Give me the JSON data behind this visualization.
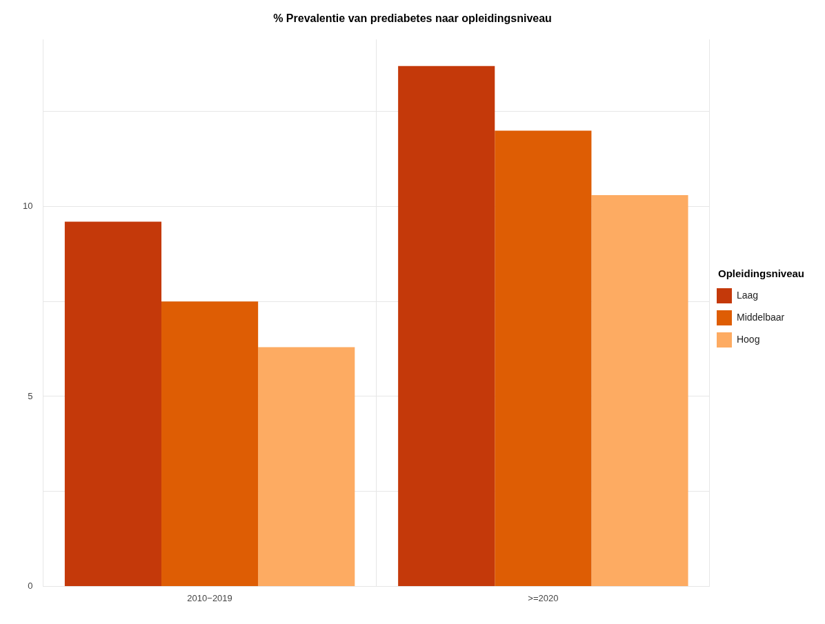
{
  "chart_data": {
    "type": "bar",
    "title": "% Prevalentie van prediabetes naar opleidingsniveau",
    "legend_title": "Opleidingsniveau",
    "categories": [
      "2010−2019",
      ">=2020"
    ],
    "series": [
      {
        "name": "Laag",
        "color": "#c4390a",
        "values": [
          9.6,
          13.7
        ]
      },
      {
        "name": "Middelbaar",
        "color": "#de5d04",
        "values": [
          7.5,
          12.0
        ]
      },
      {
        "name": "Hoog",
        "color": "#fdab62",
        "values": [
          6.3,
          10.3
        ]
      }
    ],
    "ylim": [
      0,
      14.4
    ],
    "yticks": [
      0,
      {
        "value": 2.5,
        "label": null
      },
      5,
      {
        "value": 7.5,
        "label": null
      },
      10,
      {
        "value": 12.5,
        "label": null
      }
    ],
    "grid": true,
    "legend": "right"
  }
}
